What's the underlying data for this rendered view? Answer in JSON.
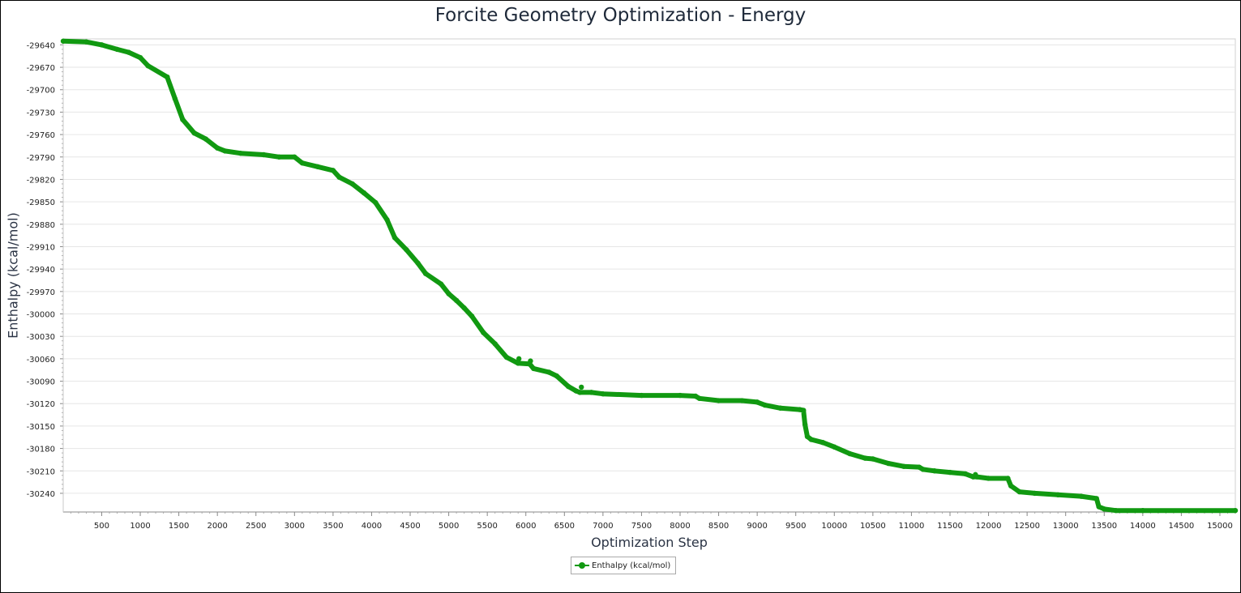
{
  "chart_data": {
    "type": "line",
    "title": "Forcite Geometry Optimization - Energy",
    "xlabel": "Optimization Step",
    "ylabel": "Enthalpy (kcal/mol)",
    "xlim": [
      1,
      15200
    ],
    "ylim": [
      -30265,
      -29632
    ],
    "xticks": [
      500,
      1000,
      1500,
      2000,
      2500,
      3000,
      3500,
      4000,
      4500,
      5000,
      5500,
      6000,
      6500,
      7000,
      7500,
      8000,
      8500,
      9000,
      9500,
      10000,
      10500,
      11000,
      11500,
      12000,
      12500,
      13000,
      13500,
      14000,
      14500,
      15000
    ],
    "yticks": [
      -29640,
      -29670,
      -29700,
      -29730,
      -29760,
      -29790,
      -29820,
      -29850,
      -29880,
      -29910,
      -29940,
      -29970,
      -30000,
      -30030,
      -30060,
      -30090,
      -30120,
      -30150,
      -30180,
      -30210,
      -30240
    ],
    "grid": true,
    "legend_position": "bottom",
    "series": [
      {
        "name": "Enthalpy (kcal/mol)",
        "color": "#119911",
        "x": [
          1,
          300,
          500,
          700,
          850,
          1000,
          1100,
          1350,
          1450,
          1550,
          1700,
          1850,
          2000,
          2100,
          2300,
          2600,
          2800,
          3000,
          3100,
          3300,
          3500,
          3580,
          3750,
          3900,
          4050,
          4200,
          4300,
          4450,
          4600,
          4700,
          4900,
          5000,
          5100,
          5200,
          5300,
          5450,
          5600,
          5750,
          5900,
          6050,
          6100,
          6300,
          6400,
          6550,
          6650,
          6700,
          6850,
          7000,
          7500,
          8000,
          8200,
          8250,
          8500,
          8800,
          9000,
          9100,
          9300,
          9550,
          9600,
          9620,
          9650,
          9700,
          9850,
          10000,
          10200,
          10400,
          10500,
          10700,
          10900,
          11100,
          11150,
          11300,
          11500,
          11700,
          11800,
          11850,
          12000,
          12250,
          12290,
          12400,
          12600,
          12900,
          13200,
          13400,
          13430,
          13500,
          13650,
          14000,
          15200
        ],
        "y": [
          -29635,
          -29636,
          -29640,
          -29646,
          -29650,
          -29657,
          -29668,
          -29683,
          -29712,
          -29740,
          -29758,
          -29766,
          -29778,
          -29782,
          -29785,
          -29787,
          -29790,
          -29790,
          -29798,
          -29803,
          -29808,
          -29817,
          -29826,
          -29838,
          -29851,
          -29874,
          -29898,
          -29914,
          -29932,
          -29946,
          -29960,
          -29973,
          -29982,
          -29992,
          -30003,
          -30025,
          -30040,
          -30058,
          -30066,
          -30067,
          -30073,
          -30078,
          -30083,
          -30097,
          -30103,
          -30105,
          -30105,
          -30107,
          -30109,
          -30109,
          -30110,
          -30113,
          -30116,
          -30116,
          -30118,
          -30122,
          -30126,
          -30128,
          -30129,
          -30148,
          -30164,
          -30168,
          -30172,
          -30178,
          -30187,
          -30193,
          -30194,
          -30200,
          -30204,
          -30205,
          -30208,
          -30210,
          -30212,
          -30214,
          -30218,
          -30218,
          -30220,
          -30220,
          -30230,
          -30238,
          -30240,
          -30242,
          -30244,
          -30247,
          -30258,
          -30261,
          -30263,
          -30263,
          -30263
        ]
      }
    ]
  }
}
